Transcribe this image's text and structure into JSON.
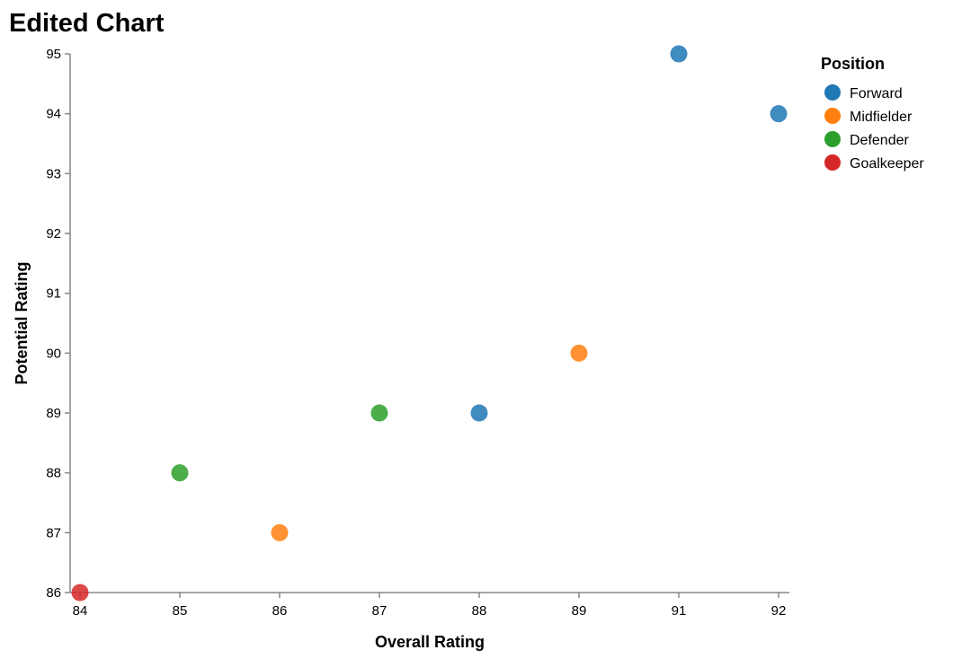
{
  "chart_data": {
    "type": "scatter",
    "title": "Edited Chart",
    "xlabel": "Overall Rating",
    "ylabel": "Potential Rating",
    "x_ticks": [
      84,
      85,
      86,
      87,
      88,
      89,
      91,
      92
    ],
    "y_ticks": [
      86,
      87,
      88,
      89,
      90,
      91,
      92,
      93,
      94,
      95
    ],
    "x_scale": "ordinal",
    "ylim": [
      86,
      95
    ],
    "grid": false,
    "legend": {
      "title": "Position",
      "placement": "top-right",
      "entries": [
        {
          "label": "Forward",
          "color": "#1f77b4"
        },
        {
          "label": "Midfielder",
          "color": "#ff7f0e"
        },
        {
          "label": "Defender",
          "color": "#2ca02c"
        },
        {
          "label": "Goalkeeper",
          "color": "#d62728"
        }
      ]
    },
    "points": [
      {
        "x": 91,
        "y": 95,
        "series": "Forward"
      },
      {
        "x": 92,
        "y": 94,
        "series": "Forward"
      },
      {
        "x": 88,
        "y": 89,
        "series": "Forward"
      },
      {
        "x": 89,
        "y": 90,
        "series": "Midfielder"
      },
      {
        "x": 86,
        "y": 87,
        "series": "Midfielder"
      },
      {
        "x": 87,
        "y": 89,
        "series": "Defender"
      },
      {
        "x": 85,
        "y": 88,
        "series": "Defender"
      },
      {
        "x": 84,
        "y": 86,
        "series": "Goalkeeper"
      }
    ]
  }
}
